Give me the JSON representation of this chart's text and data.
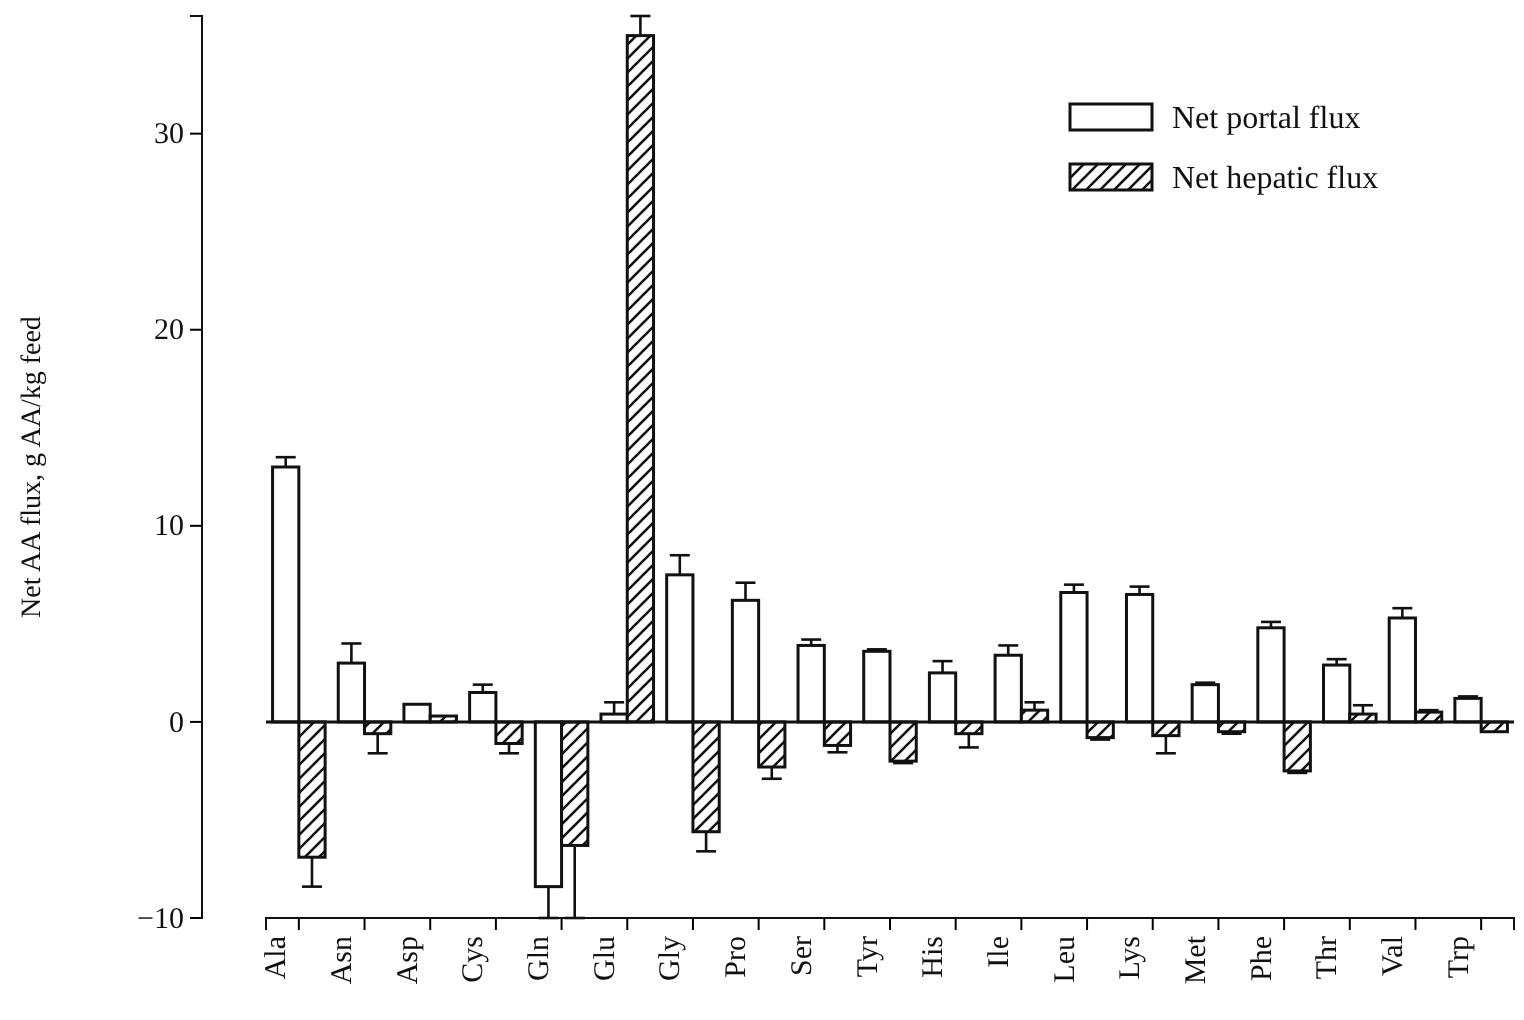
{
  "chart_data": {
    "type": "bar",
    "ylabel": "Net AA flux, g AA/kg feed",
    "categories": [
      "Ala",
      "Asn",
      "Asp",
      "Cys",
      "Gln",
      "Glu",
      "Gly",
      "Pro",
      "Ser",
      "Tyr",
      "His",
      "Ile",
      "Leu",
      "Lys",
      "Met",
      "Phe",
      "Thr",
      "Val",
      "Trp"
    ],
    "series": [
      {
        "name": "Net portal flux",
        "color": "#ffffff",
        "values": [
          13.0,
          3.0,
          0.9,
          1.5,
          -8.4,
          0.4,
          7.5,
          6.2,
          3.9,
          3.6,
          2.5,
          3.4,
          6.6,
          6.5,
          1.9,
          4.8,
          2.9,
          5.3,
          1.2
        ],
        "errors": [
          0.5,
          1.0,
          null,
          0.4,
          1.6,
          0.6,
          1.0,
          0.9,
          0.3,
          0.1,
          0.6,
          0.5,
          0.4,
          0.4,
          0.1,
          0.3,
          0.3,
          0.5,
          0.1
        ]
      },
      {
        "name": "Net hepatic flux",
        "color": "#111111",
        "values": [
          -6.9,
          -0.6,
          0.3,
          -1.1,
          -6.3,
          35.0,
          -5.6,
          -2.3,
          -1.2,
          -2.0,
          -0.6,
          0.6,
          -0.8,
          -0.7,
          -0.5,
          -2.5,
          0.4,
          0.5,
          -0.5
        ],
        "errors": [
          1.5,
          1.0,
          null,
          0.5,
          3.7,
          1.0,
          1.0,
          0.6,
          0.35,
          0.1,
          0.7,
          0.4,
          0.1,
          0.9,
          0.1,
          0.1,
          0.45,
          0.1,
          null
        ]
      }
    ],
    "ylim": [
      -10,
      36
    ],
    "yticks": [
      -10,
      0,
      10,
      20,
      30
    ],
    "ref_lines": [
      {
        "axis": "y",
        "value": 0
      }
    ],
    "legend": "top right",
    "grid": false
  }
}
